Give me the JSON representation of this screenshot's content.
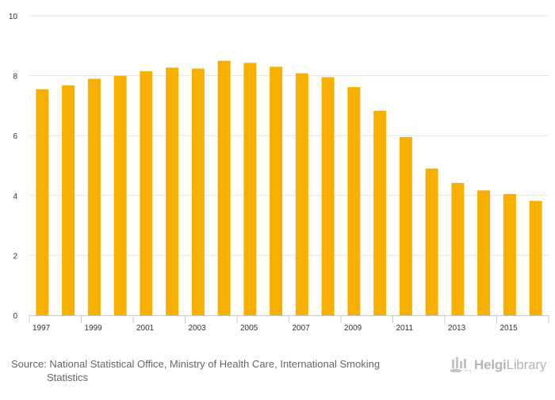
{
  "chart_data": {
    "type": "bar",
    "categories": [
      "1997",
      "1998",
      "1999",
      "2000",
      "2001",
      "2002",
      "2003",
      "2004",
      "2005",
      "2006",
      "2007",
      "2008",
      "2009",
      "2010",
      "2011",
      "2012",
      "2013",
      "2014",
      "2015",
      "2016"
    ],
    "values": [
      7.55,
      7.68,
      7.9,
      8.0,
      8.15,
      8.27,
      8.24,
      8.5,
      8.43,
      8.3,
      8.08,
      7.95,
      7.62,
      6.83,
      5.95,
      4.9,
      4.42,
      4.17,
      4.05,
      3.82
    ],
    "x_tick_labels": [
      "1997",
      "1999",
      "2001",
      "2003",
      "2005",
      "2007",
      "2009",
      "2011",
      "2013",
      "2015"
    ],
    "y_ticks": [
      0,
      2,
      4,
      6,
      8,
      10
    ],
    "ylim": [
      0,
      10
    ],
    "grid": true,
    "bar_color": "#f7b000",
    "title": "",
    "xlabel": "",
    "ylabel": ""
  },
  "source": {
    "prefix": "Source: National Statistical Office, Ministry of Health Care, International Smoking",
    "continuation": "Statistics"
  },
  "logo": {
    "name": "HelgiLibrary",
    "part1": "Helgi",
    "part2": "Library",
    "icon": "helgi-library-logo-icon"
  },
  "colors": {
    "grid": "#e6e6e6",
    "axis": "#c8c8c8",
    "tick_text": "#333333",
    "source_text": "#666666",
    "logo": "#b5b5b5"
  }
}
